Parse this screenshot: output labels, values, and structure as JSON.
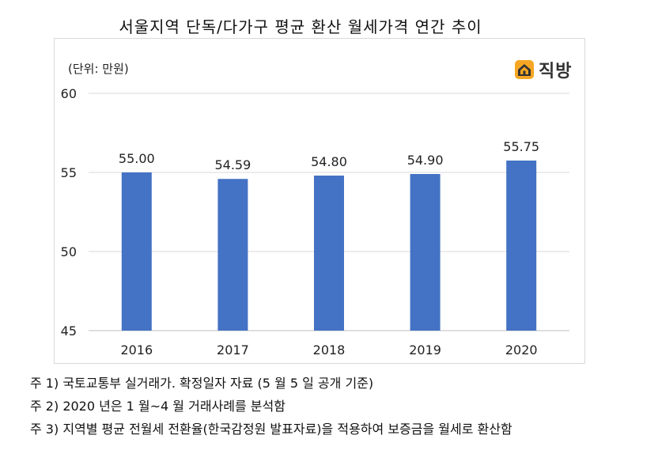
{
  "chart_data": {
    "type": "bar",
    "title": "서울지역 단독/다가구 평균 환산 월세가격 연간 추이",
    "unit_label": "(단위: 만원)",
    "categories": [
      "2016",
      "2017",
      "2018",
      "2019",
      "2020"
    ],
    "values": [
      55.0,
      54.59,
      54.8,
      54.9,
      55.75
    ],
    "data_labels": [
      "55.00",
      "54.59",
      "54.80",
      "54.90",
      "55.75"
    ],
    "ylim": [
      45,
      60
    ],
    "yticks": [
      45,
      50,
      55,
      60
    ],
    "ytick_labels": [
      "45",
      "50",
      "55",
      "60"
    ],
    "grid": true,
    "bar_color": "#4472c4"
  },
  "logo": {
    "text": "직방",
    "icon": "house-icon",
    "icon_color": "#f5a623"
  },
  "notes": [
    "주 1)  국토교통부 실거래가. 확정일자 자료 (5 월 5 일 공개 기준)",
    "주 2)  2020 년은 1 월~4 월 거래사례를 분석함",
    "주 3)  지역별 평균 전월세 전환율(한국감정원 발표자료)을 적용하여 보증금을 월세로 환산함"
  ]
}
